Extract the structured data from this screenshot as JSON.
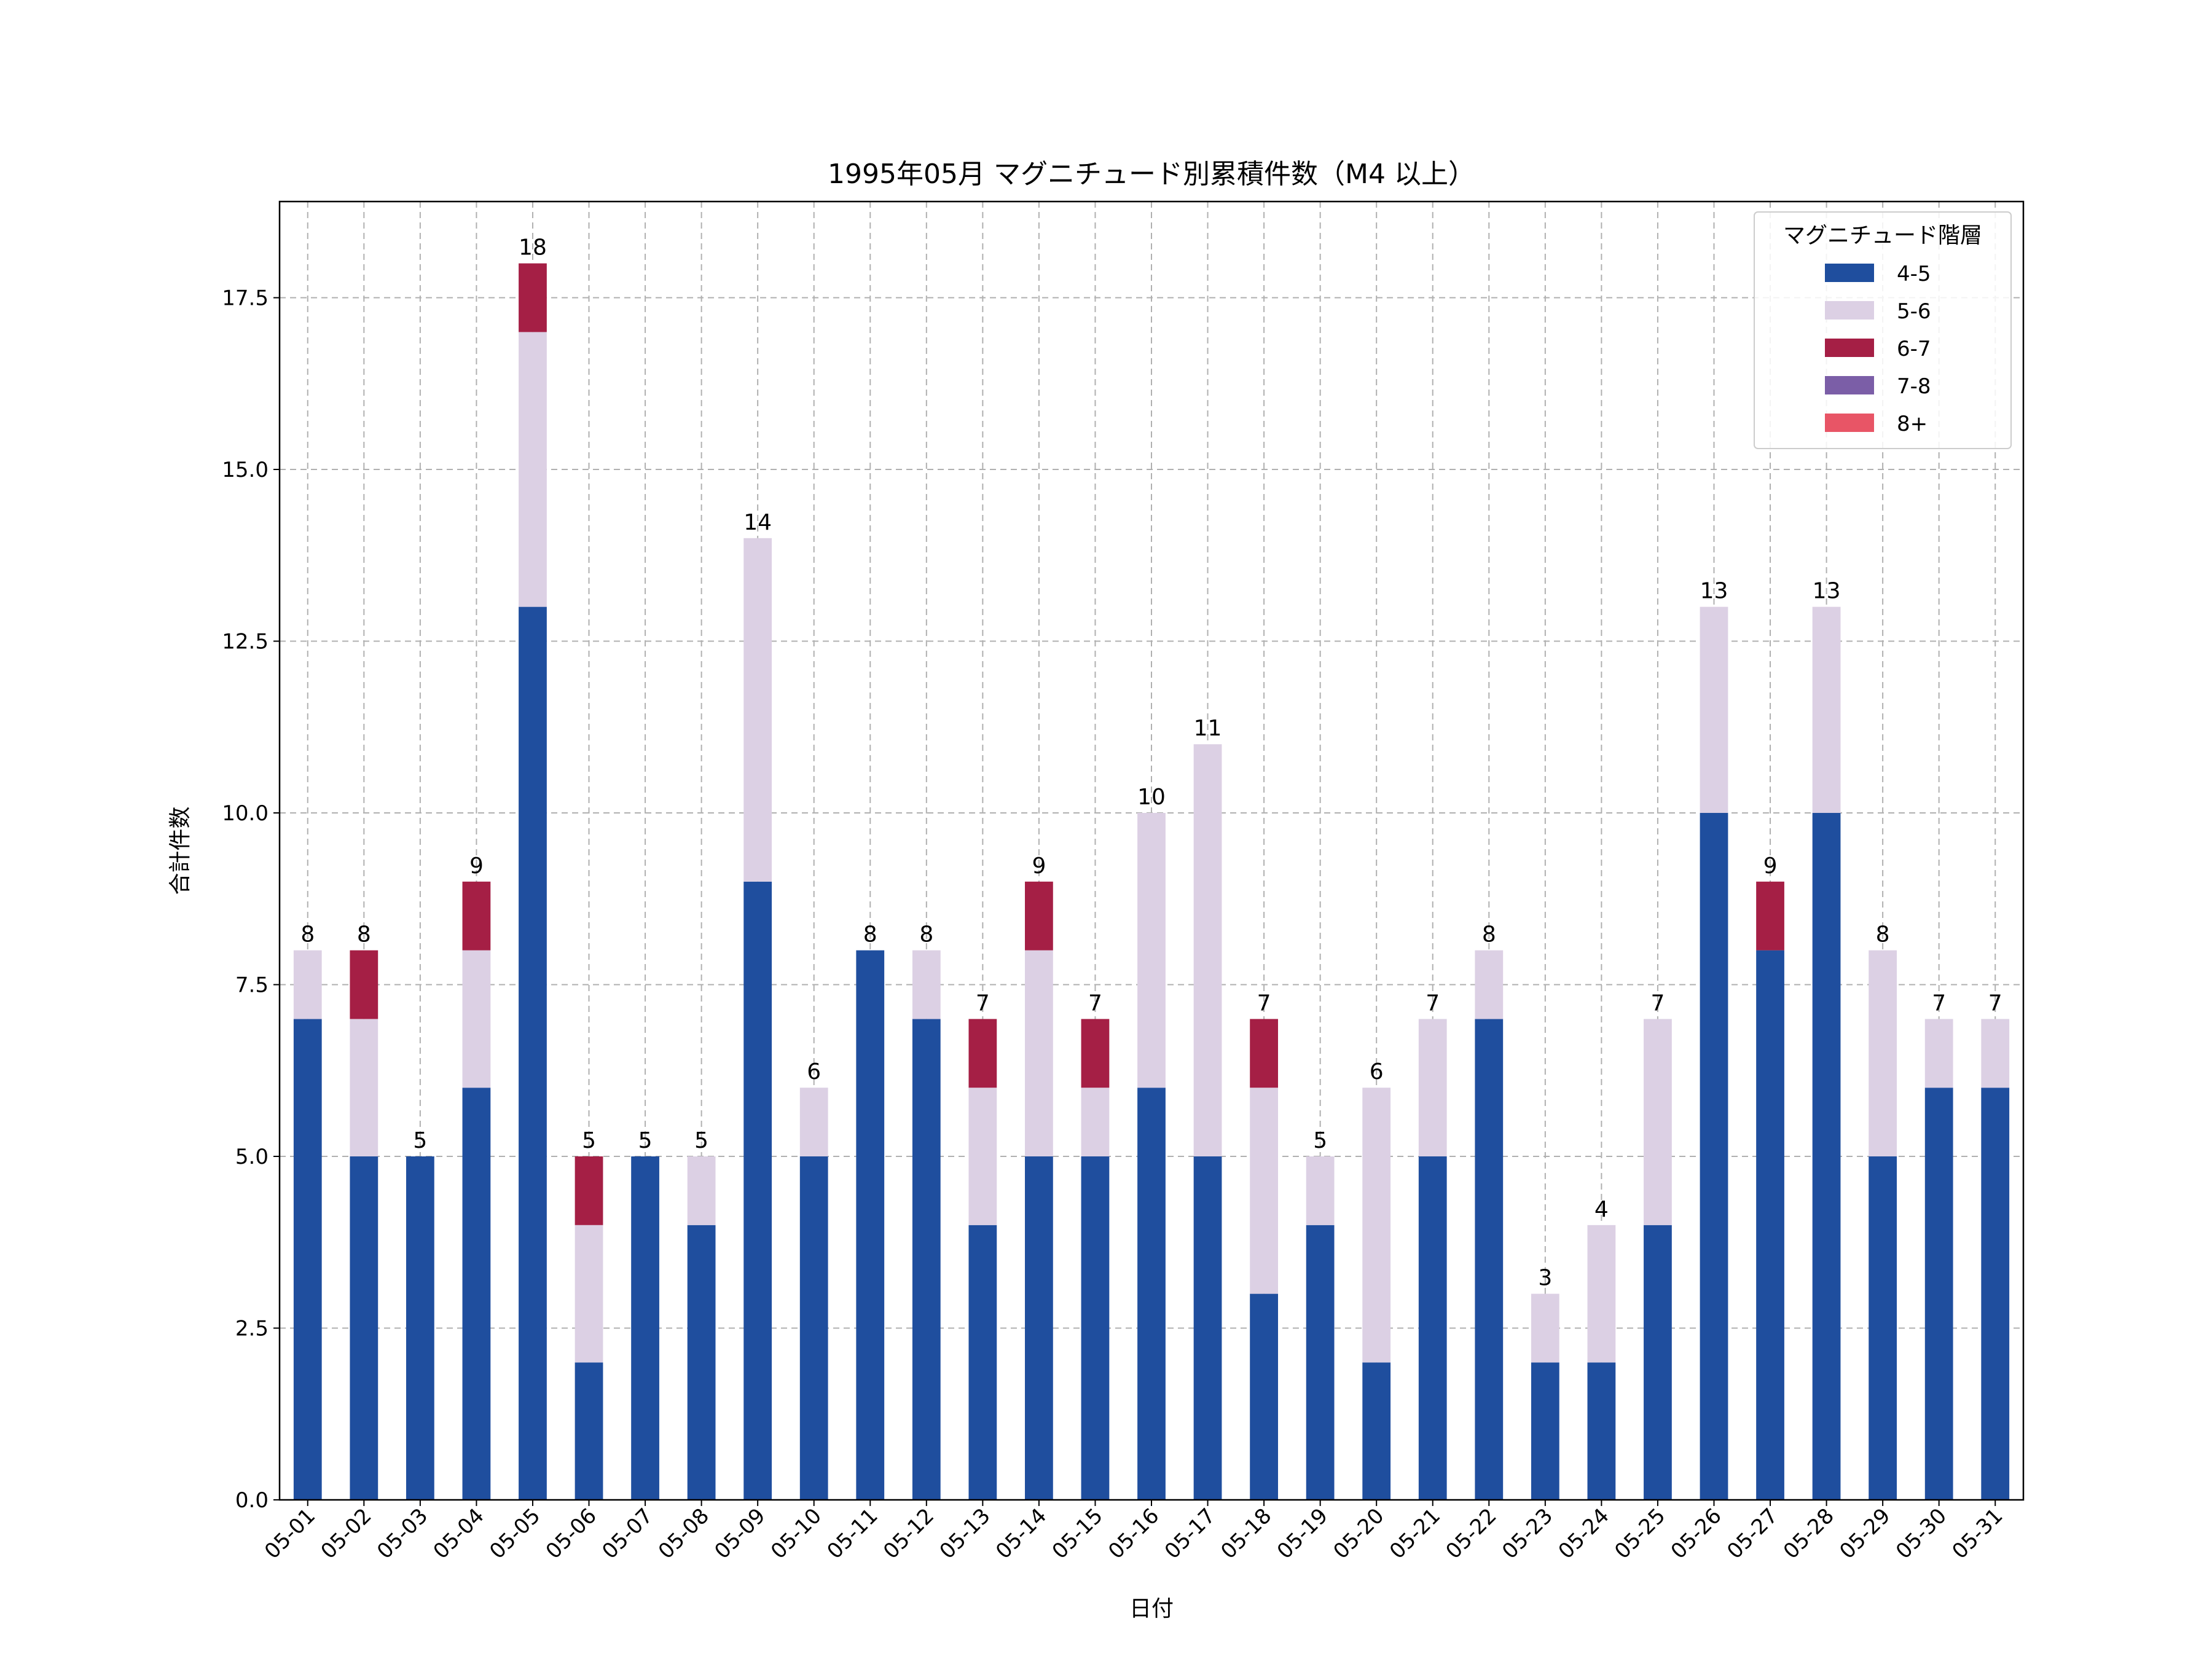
{
  "chart_data": {
    "type": "bar",
    "stacked": true,
    "title": "1995年05月 マグニチュード別累積件数（M4 以上）",
    "xlabel": "日付",
    "ylabel": "合計件数",
    "ylim": [
      0,
      18.9
    ],
    "yticks": [
      "0.0",
      "2.5",
      "5.0",
      "7.5",
      "10.0",
      "12.5",
      "15.0",
      "17.5"
    ],
    "grid": true,
    "legend": {
      "title": "マグニチュード階層",
      "position": "top-right"
    },
    "categories": [
      "05-01",
      "05-02",
      "05-03",
      "05-04",
      "05-05",
      "05-06",
      "05-07",
      "05-08",
      "05-09",
      "05-10",
      "05-11",
      "05-12",
      "05-13",
      "05-14",
      "05-15",
      "05-16",
      "05-17",
      "05-18",
      "05-19",
      "05-20",
      "05-21",
      "05-22",
      "05-23",
      "05-24",
      "05-25",
      "05-26",
      "05-27",
      "05-28",
      "05-29",
      "05-30",
      "05-31"
    ],
    "series": [
      {
        "name": "4-5",
        "color": "#1f4e9e",
        "values": [
          7,
          5,
          5,
          6,
          13,
          2,
          5,
          4,
          9,
          5,
          8,
          7,
          4,
          5,
          5,
          6,
          5,
          3,
          4,
          2,
          5,
          7,
          2,
          2,
          4,
          10,
          8,
          10,
          5,
          6,
          6
        ]
      },
      {
        "name": "5-6",
        "color": "#dcd0e4",
        "values": [
          1,
          2,
          0,
          2,
          4,
          2,
          0,
          1,
          5,
          1,
          0,
          1,
          2,
          3,
          1,
          4,
          6,
          3,
          1,
          4,
          2,
          1,
          1,
          2,
          3,
          3,
          0,
          3,
          3,
          1,
          1
        ]
      },
      {
        "name": "6-7",
        "color": "#a51f45",
        "values": [
          0,
          1,
          0,
          1,
          1,
          1,
          0,
          0,
          0,
          0,
          0,
          0,
          1,
          1,
          1,
          0,
          0,
          1,
          0,
          0,
          0,
          0,
          0,
          0,
          0,
          0,
          1,
          0,
          0,
          0,
          0
        ]
      },
      {
        "name": "7-8",
        "color": "#7b5ea7",
        "values": [
          0,
          0,
          0,
          0,
          0,
          0,
          0,
          0,
          0,
          0,
          0,
          0,
          0,
          0,
          0,
          0,
          0,
          0,
          0,
          0,
          0,
          0,
          0,
          0,
          0,
          0,
          0,
          0,
          0,
          0,
          0
        ]
      },
      {
        "name": "8+",
        "color": "#e85566",
        "values": [
          0,
          0,
          0,
          0,
          0,
          0,
          0,
          0,
          0,
          0,
          0,
          0,
          0,
          0,
          0,
          0,
          0,
          0,
          0,
          0,
          0,
          0,
          0,
          0,
          0,
          0,
          0,
          0,
          0,
          0,
          0
        ]
      }
    ],
    "totals": [
      8,
      8,
      5,
      9,
      18,
      5,
      5,
      5,
      14,
      6,
      8,
      8,
      7,
      9,
      7,
      10,
      11,
      7,
      5,
      6,
      7,
      8,
      3,
      4,
      7,
      13,
      9,
      13,
      8,
      7,
      7
    ]
  }
}
